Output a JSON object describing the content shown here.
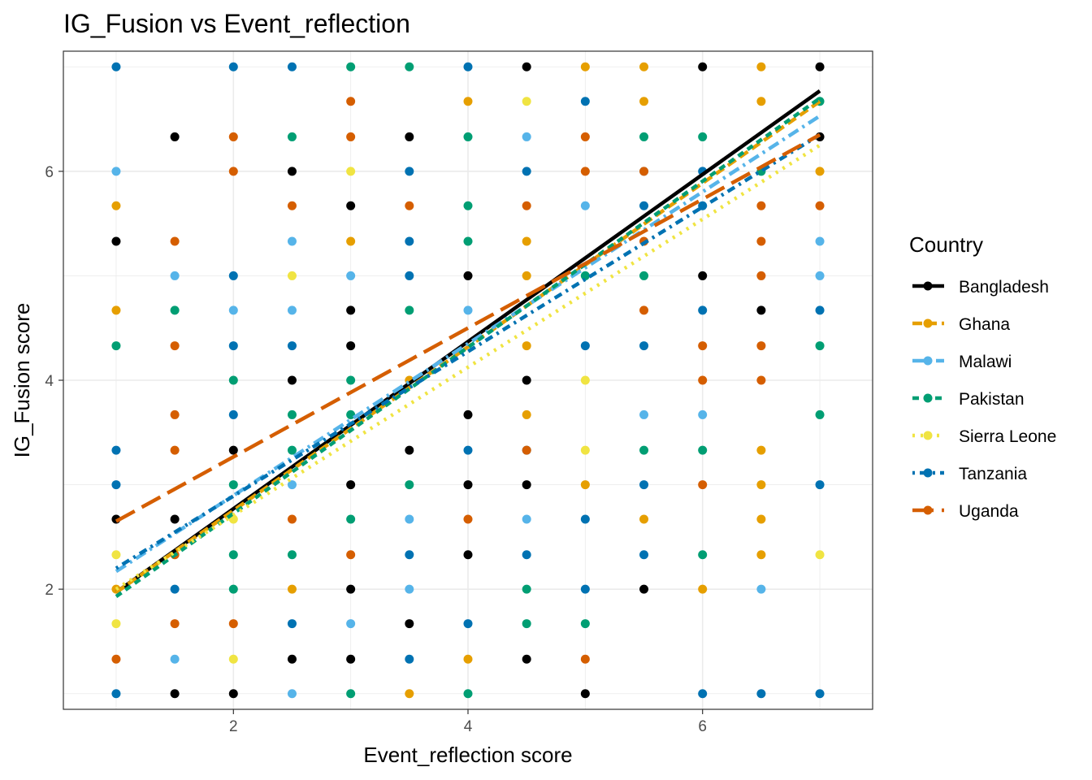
{
  "chart_data": {
    "type": "scatter",
    "title": "IG_Fusion vs Event_reflection",
    "xlabel": "Event_reflection score",
    "ylabel": "IG_Fusion score",
    "xlim": [
      0.55,
      7.45
    ],
    "ylim": [
      0.85,
      7.15
    ],
    "xticks": [
      2,
      4,
      6
    ],
    "yticks": [
      2,
      4,
      6
    ],
    "grid": true,
    "legend": {
      "title": "Country",
      "placement": "right"
    },
    "series": [
      {
        "name": "Bangladesh",
        "color": "#000000",
        "dash": "solid",
        "fit": {
          "x": [
            1,
            7
          ],
          "y": [
            1.97,
            6.77
          ]
        },
        "points": [
          [
            1,
            5.33
          ],
          [
            1,
            2.67
          ],
          [
            1.5,
            6.33
          ],
          [
            1.5,
            2.67
          ],
          [
            1.5,
            1
          ],
          [
            2,
            3.33
          ],
          [
            2,
            1
          ],
          [
            2.5,
            6
          ],
          [
            2.5,
            4
          ],
          [
            2.5,
            1.33
          ],
          [
            3,
            5.67
          ],
          [
            3,
            4.67
          ],
          [
            3,
            4.33
          ],
          [
            3,
            3
          ],
          [
            3,
            2
          ],
          [
            3,
            1.33
          ],
          [
            3.5,
            6.33
          ],
          [
            3.5,
            3.33
          ],
          [
            3.5,
            1.67
          ],
          [
            4,
            5
          ],
          [
            4,
            3.67
          ],
          [
            4,
            3
          ],
          [
            4,
            2.33
          ],
          [
            4.5,
            7
          ],
          [
            4.5,
            4
          ],
          [
            4.5,
            3
          ],
          [
            4.5,
            1.33
          ],
          [
            5,
            1
          ],
          [
            5.5,
            2
          ],
          [
            6,
            7
          ],
          [
            6,
            5
          ],
          [
            6.5,
            4.67
          ],
          [
            7,
            7
          ],
          [
            7,
            6.33
          ]
        ]
      },
      {
        "name": "Ghana",
        "color": "#E69F00",
        "dash": "long",
        "fit": {
          "x": [
            1,
            7
          ],
          "y": [
            1.97,
            6.67
          ]
        },
        "points": [
          [
            1,
            5.67
          ],
          [
            1,
            4.67
          ],
          [
            1,
            2
          ],
          [
            2.5,
            2
          ],
          [
            3,
            5.33
          ],
          [
            3.5,
            4
          ],
          [
            3.5,
            1
          ],
          [
            4,
            6.67
          ],
          [
            4,
            1.33
          ],
          [
            4.5,
            5.33
          ],
          [
            4.5,
            5
          ],
          [
            4.5,
            4.33
          ],
          [
            4.5,
            3.67
          ],
          [
            5,
            7
          ],
          [
            5,
            3
          ],
          [
            5.5,
            7
          ],
          [
            5.5,
            6.67
          ],
          [
            5.5,
            2.67
          ],
          [
            6,
            2
          ],
          [
            6.5,
            7
          ],
          [
            6.5,
            6.67
          ],
          [
            6.5,
            3.33
          ],
          [
            6.5,
            3
          ],
          [
            6.5,
            2.67
          ],
          [
            6.5,
            2.33
          ],
          [
            7,
            6
          ]
        ]
      },
      {
        "name": "Malawi",
        "color": "#56B4E9",
        "dash": "dashdot",
        "fit": {
          "x": [
            1,
            7
          ],
          "y": [
            2.17,
            6.53
          ]
        },
        "points": [
          [
            1,
            6
          ],
          [
            1.5,
            5
          ],
          [
            1.5,
            1.33
          ],
          [
            2,
            4.67
          ],
          [
            2.5,
            5.33
          ],
          [
            2.5,
            4.67
          ],
          [
            2.5,
            3
          ],
          [
            2.5,
            1
          ],
          [
            3,
            5
          ],
          [
            3,
            1.67
          ],
          [
            3.5,
            2.67
          ],
          [
            3.5,
            2
          ],
          [
            4,
            4.67
          ],
          [
            4.5,
            6.33
          ],
          [
            4.5,
            2.67
          ],
          [
            5,
            5.67
          ],
          [
            5.5,
            3.67
          ],
          [
            5.5,
            6
          ],
          [
            6,
            3.67
          ],
          [
            6.5,
            2
          ],
          [
            7,
            5.33
          ],
          [
            7,
            5
          ]
        ]
      },
      {
        "name": "Pakistan",
        "color": "#009E73",
        "dash": "dashed",
        "fit": {
          "x": [
            1,
            7
          ],
          "y": [
            1.93,
            6.7
          ]
        },
        "points": [
          [
            1,
            4.33
          ],
          [
            1.5,
            4.67
          ],
          [
            2,
            4
          ],
          [
            2,
            3
          ],
          [
            2,
            2.33
          ],
          [
            2,
            2
          ],
          [
            2.5,
            6.33
          ],
          [
            2.5,
            3.67
          ],
          [
            2.5,
            3.33
          ],
          [
            2.5,
            2.33
          ],
          [
            3,
            7
          ],
          [
            3,
            4
          ],
          [
            3,
            3.67
          ],
          [
            3,
            2.67
          ],
          [
            3,
            1
          ],
          [
            3.5,
            7
          ],
          [
            3.5,
            4.67
          ],
          [
            3.5,
            3
          ],
          [
            4,
            6.33
          ],
          [
            4,
            5.67
          ],
          [
            4,
            5.33
          ],
          [
            4,
            1
          ],
          [
            4.5,
            2
          ],
          [
            4.5,
            1.67
          ],
          [
            5,
            5
          ],
          [
            5,
            1.67
          ],
          [
            5.5,
            6.33
          ],
          [
            5.5,
            5
          ],
          [
            5.5,
            3.33
          ],
          [
            6,
            6.33
          ],
          [
            6,
            3.33
          ],
          [
            6,
            2.33
          ],
          [
            6.5,
            6
          ],
          [
            7,
            6.67
          ],
          [
            7,
            4.33
          ],
          [
            7,
            3.67
          ]
        ]
      },
      {
        "name": "Sierra Leone",
        "color": "#F0E442",
        "dash": "dotted",
        "fit": {
          "x": [
            1,
            7
          ],
          "y": [
            2.0,
            6.25
          ]
        },
        "points": [
          [
            1,
            2.33
          ],
          [
            1,
            1.67
          ],
          [
            2,
            2.67
          ],
          [
            2,
            1.33
          ],
          [
            2.5,
            5
          ],
          [
            3,
            6
          ],
          [
            4.5,
            6.67
          ],
          [
            5,
            4
          ],
          [
            5,
            3.33
          ],
          [
            7,
            2.33
          ]
        ]
      },
      {
        "name": "Tanzania",
        "color": "#0072B2",
        "dash": "dotdash",
        "fit": {
          "x": [
            1,
            7
          ],
          "y": [
            2.2,
            6.35
          ]
        },
        "points": [
          [
            1,
            7
          ],
          [
            1,
            3.33
          ],
          [
            1,
            3
          ],
          [
            1,
            1
          ],
          [
            1.5,
            2
          ],
          [
            2,
            7
          ],
          [
            2,
            5
          ],
          [
            2,
            4.33
          ],
          [
            2,
            3.67
          ],
          [
            2.5,
            7
          ],
          [
            2.5,
            4.33
          ],
          [
            2.5,
            1.67
          ],
          [
            3.5,
            6
          ],
          [
            3.5,
            5.33
          ],
          [
            3.5,
            5
          ],
          [
            3.5,
            2.33
          ],
          [
            3.5,
            1.33
          ],
          [
            4,
            7
          ],
          [
            4,
            3.33
          ],
          [
            4,
            1.67
          ],
          [
            4.5,
            6
          ],
          [
            4.5,
            3.33
          ],
          [
            4.5,
            2.33
          ],
          [
            5,
            6.67
          ],
          [
            5,
            4.33
          ],
          [
            5,
            2.67
          ],
          [
            5,
            2
          ],
          [
            5.5,
            5.67
          ],
          [
            5.5,
            4.33
          ],
          [
            5.5,
            3
          ],
          [
            5.5,
            2.33
          ],
          [
            6,
            6
          ],
          [
            6,
            5.67
          ],
          [
            6,
            4.67
          ],
          [
            6,
            1
          ],
          [
            6.5,
            1
          ],
          [
            7,
            4.67
          ],
          [
            7,
            3
          ],
          [
            7,
            1
          ]
        ]
      },
      {
        "name": "Uganda",
        "color": "#D55E00",
        "dash": "longdash",
        "fit": {
          "x": [
            1,
            7
          ],
          "y": [
            2.65,
            6.35
          ]
        },
        "points": [
          [
            1,
            1.33
          ],
          [
            1.5,
            5.33
          ],
          [
            1.5,
            4.33
          ],
          [
            1.5,
            3.67
          ],
          [
            1.5,
            3.33
          ],
          [
            1.5,
            2.33
          ],
          [
            1.5,
            1.67
          ],
          [
            2,
            6.33
          ],
          [
            2,
            6
          ],
          [
            2,
            1.67
          ],
          [
            2.5,
            5.67
          ],
          [
            2.5,
            2.67
          ],
          [
            3,
            6.67
          ],
          [
            3,
            6.33
          ],
          [
            3,
            2.33
          ],
          [
            3.5,
            5.67
          ],
          [
            4,
            2.67
          ],
          [
            4.5,
            5.67
          ],
          [
            4.5,
            3.33
          ],
          [
            5,
            6.33
          ],
          [
            5,
            6
          ],
          [
            5,
            1.33
          ],
          [
            5.5,
            6
          ],
          [
            5.5,
            5.33
          ],
          [
            5.5,
            4.67
          ],
          [
            6,
            4.33
          ],
          [
            6,
            4
          ],
          [
            6,
            3
          ],
          [
            6.5,
            5.67
          ],
          [
            6.5,
            5.33
          ],
          [
            6.5,
            5
          ],
          [
            6.5,
            4.33
          ],
          [
            6.5,
            4
          ],
          [
            7,
            5.67
          ]
        ]
      }
    ]
  }
}
